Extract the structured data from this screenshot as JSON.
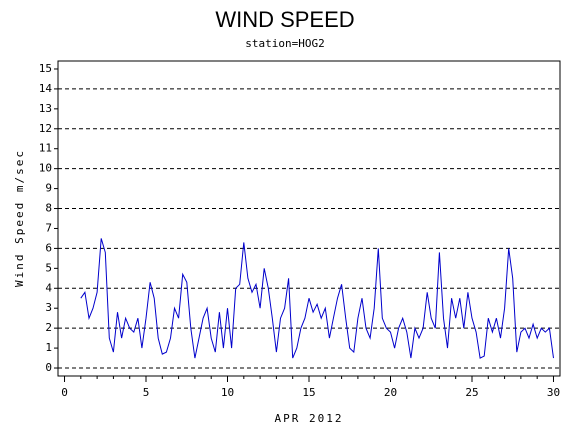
{
  "chart_data": {
    "type": "line",
    "title": "WIND SPEED",
    "subtitle": "station=HOG2",
    "ylabel": "Wind Speed m/sec",
    "xlabel": "APR 2012",
    "xlim": [
      -0.4,
      30.4
    ],
    "ylim": [
      -0.4,
      15.4
    ],
    "xticks": [
      0,
      5,
      10,
      15,
      20,
      25,
      30
    ],
    "xminor_ticks": [
      1,
      2,
      3,
      4,
      6,
      7,
      8,
      9,
      11,
      12,
      13,
      14,
      16,
      17,
      18,
      19,
      21,
      22,
      23,
      24,
      26,
      27,
      28,
      29
    ],
    "yticks": [
      0,
      1,
      2,
      3,
      4,
      5,
      6,
      7,
      8,
      9,
      10,
      11,
      12,
      13,
      14,
      15
    ],
    "grid_lines": [
      0,
      2,
      4,
      6,
      8,
      10,
      12,
      14
    ],
    "x": [
      1,
      1.25,
      1.5,
      1.75,
      2,
      2.25,
      2.5,
      2.75,
      3,
      3.25,
      3.5,
      3.75,
      4,
      4.25,
      4.5,
      4.75,
      5,
      5.25,
      5.5,
      5.75,
      6,
      6.25,
      6.5,
      6.75,
      7,
      7.25,
      7.5,
      7.75,
      8,
      8.25,
      8.5,
      8.75,
      9,
      9.25,
      9.5,
      9.75,
      10,
      10.25,
      10.5,
      10.75,
      11,
      11.25,
      11.5,
      11.75,
      12,
      12.25,
      12.5,
      12.75,
      13,
      13.25,
      13.5,
      13.75,
      14,
      14.25,
      14.5,
      14.75,
      15,
      15.25,
      15.5,
      15.75,
      16,
      16.25,
      16.5,
      16.75,
      17,
      17.25,
      17.5,
      17.75,
      18,
      18.25,
      18.5,
      18.75,
      19,
      19.25,
      19.5,
      19.75,
      20,
      20.25,
      20.5,
      20.75,
      21,
      21.25,
      21.5,
      21.75,
      22,
      22.25,
      22.5,
      22.75,
      23,
      23.25,
      23.5,
      23.75,
      24,
      24.25,
      24.5,
      24.75,
      25,
      25.25,
      25.5,
      25.75,
      26,
      26.25,
      26.5,
      26.75,
      27,
      27.25,
      27.5,
      27.75,
      28,
      28.25,
      28.5,
      28.75,
      29,
      29.25,
      29.5,
      29.75,
      30
    ],
    "series": [
      {
        "name": "Wind Speed",
        "color": "#0000cc",
        "values": [
          3.5,
          3.8,
          2.5,
          3.0,
          3.8,
          6.5,
          5.8,
          1.5,
          0.8,
          2.8,
          1.5,
          2.5,
          2.0,
          1.8,
          2.5,
          1.0,
          2.5,
          4.3,
          3.5,
          1.5,
          0.7,
          0.8,
          1.5,
          3.0,
          2.5,
          4.7,
          4.3,
          2.0,
          0.5,
          1.5,
          2.5,
          3.0,
          1.5,
          0.8,
          2.8,
          1.0,
          3.0,
          1.0,
          4.0,
          4.2,
          6.3,
          4.5,
          3.8,
          4.2,
          3.0,
          5.0,
          4.0,
          2.5,
          0.8,
          2.5,
          3.0,
          4.5,
          0.5,
          1.0,
          2.0,
          2.5,
          3.5,
          2.8,
          3.2,
          2.5,
          3.0,
          1.5,
          2.5,
          3.5,
          4.2,
          2.5,
          1.0,
          0.8,
          2.5,
          3.5,
          2.0,
          1.5,
          3.0,
          6.0,
          2.5,
          2.0,
          1.8,
          1.0,
          2.0,
          2.5,
          1.8,
          0.5,
          2.0,
          1.5,
          2.0,
          3.8,
          2.5,
          2.0,
          5.8,
          2.5,
          1.0,
          3.5,
          2.5,
          3.5,
          2.0,
          3.8,
          2.5,
          1.8,
          0.5,
          0.6,
          2.5,
          1.8,
          2.5,
          1.5,
          3.0,
          6.0,
          4.5,
          0.8,
          1.8,
          2.0,
          1.5,
          2.2,
          1.5,
          2.0,
          1.8,
          2.0,
          0.5
        ]
      }
    ]
  }
}
